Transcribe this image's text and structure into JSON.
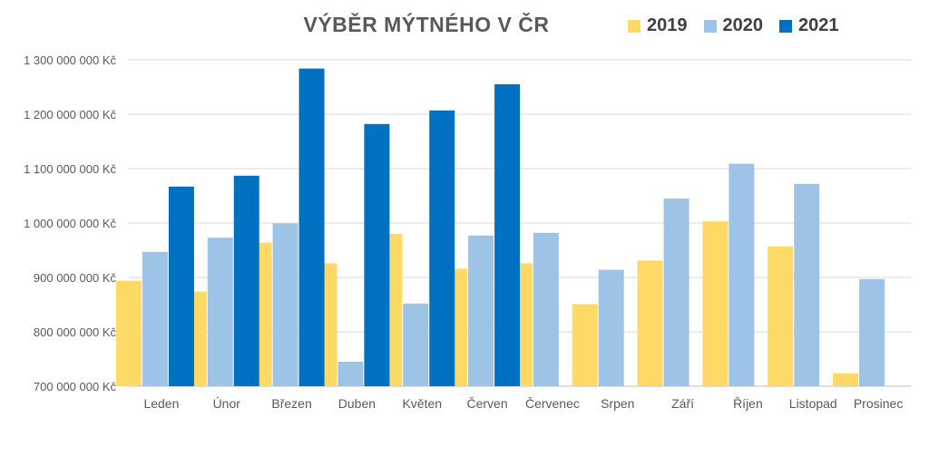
{
  "chart_data": {
    "type": "bar",
    "title": "VÝBĚR MÝTNÉHO V ČR",
    "xlabel": "",
    "ylabel": "",
    "ylim": [
      700000000,
      1300000000
    ],
    "yticks": [
      700000000,
      800000000,
      900000000,
      1000000000,
      1100000000,
      1200000000,
      1300000000
    ],
    "ytick_labels": [
      "700 000 000 Kč",
      "800 000 000 Kč",
      "900 000 000 Kč",
      "1 000 000 000 Kč",
      "1 100 000 000 Kč",
      "1 200 000 000 Kč",
      "1 300 000 000 Kč"
    ],
    "grid": true,
    "legend_position": "top-right",
    "categories": [
      "Leden",
      "Únor",
      "Březen",
      "Duben",
      "Květen",
      "Červen",
      "Červenec",
      "Srpen",
      "Září",
      "Říjen",
      "Listopad",
      "Prosinec"
    ],
    "series": [
      {
        "name": "2019",
        "color": "#FFD966",
        "values": [
          894000000,
          874000000,
          964000000,
          926000000,
          980000000,
          916000000,
          926000000,
          851000000,
          931000000,
          1003000000,
          957000000,
          724000000
        ]
      },
      {
        "name": "2020",
        "color": "#9DC3E6",
        "values": [
          947000000,
          973000000,
          999000000,
          745000000,
          852000000,
          977000000,
          982000000,
          914000000,
          1045000000,
          1109000000,
          1072000000,
          897000000
        ]
      },
      {
        "name": "2021",
        "color": "#0070C0",
        "values": [
          1067000000,
          1087000000,
          1284000000,
          1182000000,
          1207000000,
          1255000000,
          null,
          null,
          null,
          null,
          null,
          null
        ]
      }
    ]
  }
}
